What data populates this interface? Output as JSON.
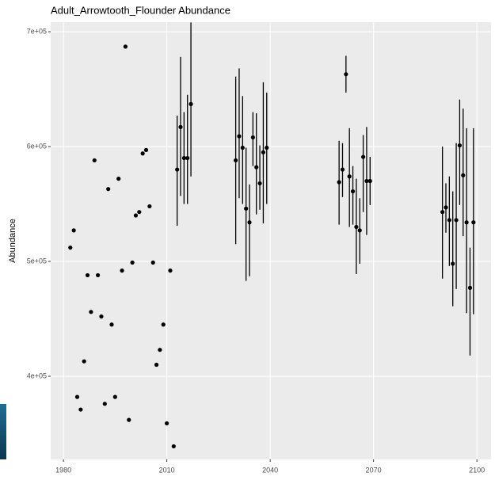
{
  "chart_data": {
    "type": "scatter",
    "title": "Adult_Arrowtooth_Flounder Abundance",
    "y_label": "Abundance",
    "xlim": [
      1976.3,
      2104.1
    ],
    "xticks": [
      1980,
      2010,
      2040,
      2070,
      2100
    ],
    "ylim": [
      327600,
      708300
    ],
    "yticks": [
      {
        "value": 400000,
        "label": "4e+05"
      },
      {
        "value": 500000,
        "label": "5e+05"
      },
      {
        "value": 600000,
        "label": "6e+05"
      },
      {
        "value": 700000,
        "label": "7e+05"
      }
    ],
    "grid": true,
    "background": "#ebebeb",
    "grid_color": "#ffffff",
    "series": [
      {
        "color": "#000000",
        "x": [
          1982,
          1983,
          1984,
          1985,
          1986,
          1987,
          1988,
          1989,
          1990,
          1991,
          1992,
          1993,
          1994,
          1995,
          1996,
          1997,
          1998,
          1999,
          2000,
          2001,
          2002,
          2003,
          2004,
          2005,
          2006,
          2007,
          2008,
          2009,
          2010,
          2011,
          2012
        ],
        "y": [
          512000,
          527000,
          382000,
          371000,
          413000,
          488000,
          456000,
          588000,
          488000,
          452000,
          376000,
          563000,
          445000,
          382000,
          572000,
          492000,
          687000,
          362000,
          499000,
          540000,
          543000,
          594000,
          597000,
          548000,
          499000,
          410000,
          423000,
          445000,
          359000,
          492000,
          339000
        ]
      },
      {
        "color": "#000000",
        "x": [
          2013,
          2014,
          2015,
          2016,
          2017,
          2030,
          2031,
          2032,
          2033,
          2034,
          2035,
          2036,
          2037,
          2038,
          2039,
          2060,
          2061,
          2062,
          2063,
          2064,
          2065,
          2066,
          2067,
          2068,
          2069,
          2090,
          2091,
          2092,
          2093,
          2094,
          2095,
          2096,
          2097,
          2098,
          2099
        ],
        "y": [
          580000,
          617000,
          590000,
          590000,
          637000,
          588000,
          609000,
          599000,
          546000,
          534000,
          608000,
          582000,
          568000,
          595000,
          599000,
          569000,
          580000,
          663000,
          574000,
          561000,
          530000,
          527000,
          591000,
          570000,
          570000,
          543000,
          547000,
          536000,
          498000,
          536000,
          601000,
          575000,
          534000,
          477000,
          534000
        ],
        "lower": [
          531000,
          557000,
          550000,
          550000,
          574000,
          515000,
          555000,
          550000,
          483000,
          487000,
          583000,
          541000,
          545000,
          533000,
          550000,
          532000,
          556000,
          647000,
          530000,
          532000,
          489000,
          498000,
          543000,
          523000,
          549000,
          485000,
          525000,
          496000,
          461000,
          476000,
          549000,
          522000,
          455000,
          418000,
          454000
        ],
        "upper": [
          627000,
          678000,
          630000,
          645000,
          708000,
          661000,
          668000,
          644000,
          599000,
          567000,
          630000,
          629000,
          601000,
          656000,
          647000,
          605000,
          603000,
          679000,
          616000,
          583000,
          572000,
          555000,
          610000,
          617000,
          591000,
          600000,
          568000,
          574000,
          561000,
          603000,
          641000,
          633000,
          616000,
          512000,
          616000
        ]
      }
    ]
  }
}
